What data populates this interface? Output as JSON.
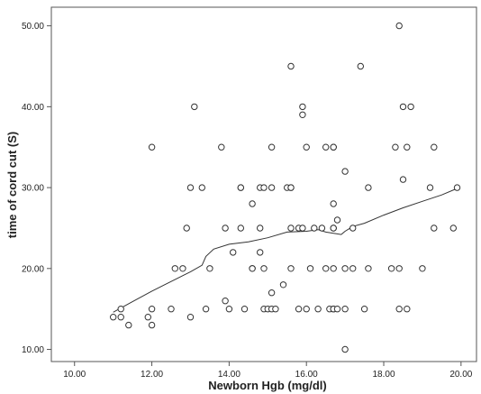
{
  "chart_data": {
    "type": "scatter",
    "title": "",
    "xlabel": "Newborn Hgb (mg/dl)",
    "ylabel": "time of cord cut (S)",
    "xlim": [
      9.4,
      20.4
    ],
    "ylim": [
      8.5,
      52.3
    ],
    "xticks": [
      "10.00",
      "12.00",
      "14.00",
      "16.00",
      "18.00",
      "20.00"
    ],
    "yticks": [
      "10.00",
      "20.00",
      "30.00",
      "40.00",
      "50.00"
    ],
    "grid": false,
    "legend": "none",
    "colors": {
      "marker_stroke": "#333333",
      "fit_line": "#333333",
      "plot_background": "#ffffff",
      "frame": "#555555"
    },
    "points": [
      [
        11.0,
        14
      ],
      [
        11.2,
        15
      ],
      [
        11.2,
        14
      ],
      [
        11.4,
        13
      ],
      [
        11.9,
        14
      ],
      [
        12.0,
        35
      ],
      [
        12.0,
        13
      ],
      [
        12.0,
        15
      ],
      [
        12.5,
        15
      ],
      [
        12.6,
        20
      ],
      [
        12.8,
        20
      ],
      [
        12.9,
        25
      ],
      [
        13.0,
        30
      ],
      [
        13.0,
        14
      ],
      [
        13.1,
        40
      ],
      [
        13.3,
        30
      ],
      [
        13.4,
        15
      ],
      [
        13.5,
        20
      ],
      [
        13.8,
        35
      ],
      [
        13.9,
        25
      ],
      [
        13.9,
        16
      ],
      [
        14.0,
        15
      ],
      [
        14.1,
        22
      ],
      [
        14.3,
        30
      ],
      [
        14.3,
        30
      ],
      [
        14.3,
        25
      ],
      [
        14.4,
        15
      ],
      [
        14.6,
        28
      ],
      [
        14.6,
        20
      ],
      [
        14.6,
        20
      ],
      [
        14.8,
        30
      ],
      [
        14.8,
        25
      ],
      [
        14.8,
        22
      ],
      [
        14.9,
        30
      ],
      [
        14.9,
        20
      ],
      [
        14.9,
        15
      ],
      [
        15.0,
        15
      ],
      [
        15.1,
        35
      ],
      [
        15.1,
        30
      ],
      [
        15.1,
        17
      ],
      [
        15.1,
        15
      ],
      [
        15.2,
        15
      ],
      [
        15.4,
        18
      ],
      [
        15.5,
        30
      ],
      [
        15.6,
        45
      ],
      [
        15.6,
        30
      ],
      [
        15.6,
        30
      ],
      [
        15.6,
        25
      ],
      [
        15.6,
        20
      ],
      [
        15.8,
        25
      ],
      [
        15.8,
        15
      ],
      [
        15.9,
        40
      ],
      [
        15.9,
        39
      ],
      [
        15.9,
        25
      ],
      [
        16.0,
        35
      ],
      [
        16.0,
        15
      ],
      [
        16.1,
        20
      ],
      [
        16.2,
        25
      ],
      [
        16.3,
        15
      ],
      [
        16.4,
        25
      ],
      [
        16.5,
        35
      ],
      [
        16.5,
        20
      ],
      [
        16.6,
        15
      ],
      [
        16.7,
        35
      ],
      [
        16.7,
        35
      ],
      [
        16.7,
        28
      ],
      [
        16.7,
        25
      ],
      [
        16.7,
        25
      ],
      [
        16.7,
        20
      ],
      [
        16.7,
        15
      ],
      [
        16.7,
        15
      ],
      [
        16.8,
        26
      ],
      [
        16.8,
        15
      ],
      [
        17.0,
        32
      ],
      [
        17.0,
        20
      ],
      [
        17.0,
        15
      ],
      [
        17.0,
        10
      ],
      [
        17.2,
        25
      ],
      [
        17.2,
        20
      ],
      [
        17.4,
        45
      ],
      [
        17.5,
        15
      ],
      [
        17.6,
        30
      ],
      [
        17.6,
        20
      ],
      [
        18.2,
        20
      ],
      [
        18.3,
        35
      ],
      [
        18.4,
        50
      ],
      [
        18.4,
        20
      ],
      [
        18.4,
        15
      ],
      [
        18.5,
        40
      ],
      [
        18.5,
        31
      ],
      [
        18.6,
        35
      ],
      [
        18.6,
        15
      ],
      [
        18.7,
        40
      ],
      [
        19.0,
        20
      ],
      [
        19.2,
        30
      ],
      [
        19.3,
        35
      ],
      [
        19.3,
        25
      ],
      [
        19.8,
        25
      ],
      [
        19.9,
        30
      ]
    ],
    "fit_line": [
      [
        11.0,
        14.6
      ],
      [
        11.5,
        15.9
      ],
      [
        12.0,
        17.2
      ],
      [
        12.5,
        18.4
      ],
      [
        13.0,
        19.6
      ],
      [
        13.3,
        20.4
      ],
      [
        13.4,
        21.5
      ],
      [
        13.6,
        22.4
      ],
      [
        14.0,
        23.0
      ],
      [
        14.5,
        23.3
      ],
      [
        15.0,
        23.8
      ],
      [
        15.5,
        24.5
      ],
      [
        16.0,
        24.6
      ],
      [
        16.3,
        24.8
      ],
      [
        16.5,
        24.5
      ],
      [
        16.9,
        24.2
      ],
      [
        17.0,
        24.6
      ],
      [
        17.2,
        25.2
      ],
      [
        17.5,
        25.6
      ],
      [
        18.0,
        26.6
      ],
      [
        18.5,
        27.5
      ],
      [
        19.0,
        28.3
      ],
      [
        19.5,
        29.1
      ],
      [
        19.9,
        29.9
      ]
    ]
  }
}
